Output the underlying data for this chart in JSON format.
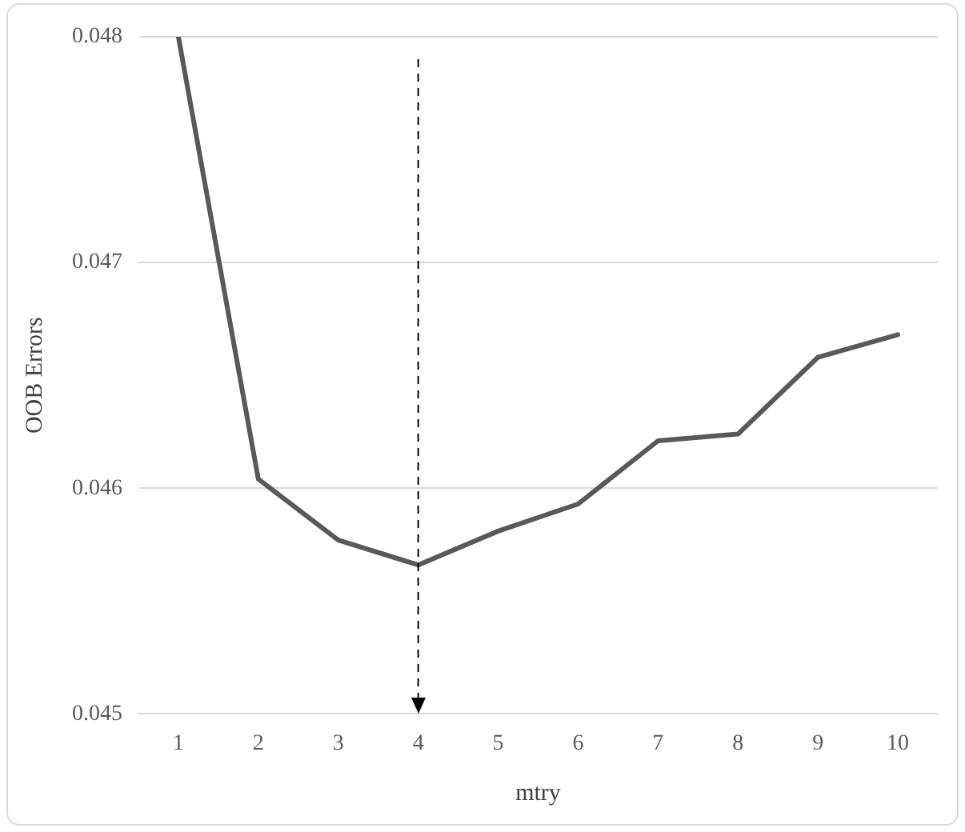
{
  "chart_data": {
    "type": "line",
    "xlabel": "mtry",
    "ylabel": "OOB Errors",
    "x": [
      1,
      2,
      3,
      4,
      5,
      6,
      7,
      8,
      9,
      10
    ],
    "series": [
      {
        "color": "#595959",
        "values": [
          0.048,
          0.04604,
          0.04577,
          0.04566,
          0.04581,
          0.04593,
          0.04621,
          0.04624,
          0.04658,
          0.04668
        ]
      }
    ],
    "xlim": [
      0.5,
      10.5
    ],
    "xticks": [
      1,
      2,
      3,
      4,
      5,
      6,
      7,
      8,
      9,
      10
    ],
    "ylim": [
      0.045,
      0.048
    ],
    "yticks": [
      0.045,
      0.046,
      0.047,
      0.048
    ],
    "grid": "y",
    "legend": false,
    "marker": "none",
    "line_style": "solid",
    "ref_lines": [
      {
        "axis": "x",
        "value": 4,
        "line_style": "dashed",
        "color": "#000000"
      }
    ]
  }
}
